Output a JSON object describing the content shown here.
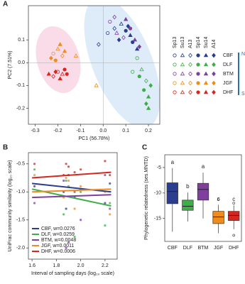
{
  "chart_data": [
    {
      "type": "scatter",
      "panel_label": "A",
      "xlabel": "PC1 (56.78%)",
      "ylabel": "PC2 (7.51%)",
      "xlim": [
        -0.33,
        0.25
      ],
      "ylim": [
        -0.27,
        0.25
      ],
      "xticks": [
        -0.3,
        -0.2,
        -0.1,
        {
          "value": 0,
          "label": "0.0"
        },
        0.1,
        0.2
      ],
      "yticks": [
        -0.2,
        -0.1,
        {
          "value": 0,
          "label": "0.0"
        },
        0.1
      ],
      "seasons": [
        "Sp13",
        "Su13",
        "A13",
        "Sp14",
        "Su14",
        "A14"
      ],
      "north_label": "N",
      "south_label": "S",
      "series": [
        {
          "name": "CBF",
          "color": "#2b3d8f",
          "x": [
            0.02,
            0.05,
            0.08,
            0.1,
            0.12,
            0.07,
            0.13,
            -0.02,
            0.15,
            0.11
          ],
          "values": [
            0.13,
            0.15,
            0.17,
            0.14,
            0.12,
            0.1,
            0.09,
            0.08,
            0.06,
            0.16
          ],
          "season": [
            "Sp13",
            "A13",
            "Su13",
            "Sp14",
            "Su14",
            "A14",
            "Sp14",
            "A13",
            "Su14",
            "A14"
          ]
        },
        {
          "name": "DLF",
          "color": "#3fae49",
          "x": [
            0.15,
            0.17,
            0.19,
            0.18,
            0.2,
            0.19,
            0.21,
            0.16,
            0.2,
            0.13
          ],
          "values": [
            0.02,
            -0.03,
            -0.08,
            -0.12,
            -0.15,
            -0.18,
            -0.1,
            -0.06,
            -0.2,
            -0.04
          ],
          "season": [
            "Sp13",
            "Su13",
            "A13",
            "Sp14",
            "Su14",
            "A14",
            "A14",
            "Sp14",
            "Su14",
            "Sp13"
          ]
        },
        {
          "name": "BTM",
          "color": "#7e3f9d",
          "x": [
            0.03,
            0.06,
            0.09,
            0.12,
            0.14,
            0.16,
            0.05,
            0.1
          ],
          "values": [
            0.18,
            0.13,
            0.11,
            0.15,
            0.1,
            0.07,
            0.2,
            0.19
          ],
          "season": [
            "Sp13",
            "Su13",
            "A13",
            "Sp14",
            "Su14",
            "A14",
            "A13",
            "Su14"
          ]
        },
        {
          "name": "JGF",
          "color": "#f08c1e",
          "x": [
            -0.22,
            -0.2,
            -0.18,
            -0.21,
            -0.17,
            -0.23,
            -0.19,
            -0.12,
            -0.03
          ],
          "values": [
            0.04,
            0.06,
            0.03,
            0.01,
            0.05,
            0.02,
            0.08,
            0.03,
            -0.1
          ],
          "season": [
            "Sp13",
            "Su13",
            "A13",
            "Sp14",
            "Su14",
            "A14",
            "Su14",
            "Su13",
            "Su13"
          ]
        },
        {
          "name": "DHF",
          "color": "#d7261e",
          "x": [
            -0.2,
            -0.18,
            -0.22,
            -0.17,
            -0.19,
            -0.21,
            -0.16,
            -0.24
          ],
          "values": [
            -0.04,
            -0.05,
            -0.06,
            -0.03,
            -0.07,
            -0.04,
            -0.05,
            -0.05
          ],
          "season": [
            "Sp13",
            "Su13",
            "A13",
            "Sp14",
            "Su14",
            "A14",
            "Sp14",
            "Su14"
          ]
        }
      ]
    },
    {
      "type": "scatter-fit",
      "panel_label": "B",
      "xlabel": "Interval of sampling days (log₁₀ scale)",
      "ylabel": "UniFrac community similarity (log₁₀ scale)",
      "xlim": [
        1.57,
        2.3
      ],
      "ylim": [
        -2.2,
        -0.3
      ],
      "xticks": [
        1.6,
        1.8,
        {
          "value": 2,
          "label": "2.0"
        },
        2.2
      ],
      "yticks": [
        -0.5,
        {
          "value": -1,
          "label": "-1.0"
        },
        -1.5,
        {
          "value": -2,
          "label": "-2.0"
        }
      ],
      "fit_x": [
        1.6,
        2.25
      ],
      "series": [
        {
          "name": "CBF, w=0.0276",
          "color": "#2b3d8f",
          "x": [
            1.62,
            1.86,
            1.9,
            1.95,
            2.0,
            2.2,
            2.24,
            1.88
          ],
          "values": [
            -0.9,
            -1.0,
            -0.7,
            -1.1,
            -0.95,
            -1.2,
            -0.85,
            -1.3
          ],
          "fit": [
            -0.85,
            -1.0
          ]
        },
        {
          "name": "DLF, w=0.0259",
          "color": "#3fae49",
          "x": [
            1.62,
            1.86,
            1.9,
            1.95,
            2.0,
            2.2,
            2.24,
            1.88
          ],
          "values": [
            -0.6,
            -1.4,
            -0.9,
            -1.8,
            -1.0,
            -1.6,
            -1.2,
            -0.8
          ],
          "fit": [
            -0.95,
            -1.25
          ]
        },
        {
          "name": "BTM, w=0.0048",
          "color": "#7e3f9d",
          "x": [
            1.62,
            1.86,
            1.9,
            1.95,
            2.0,
            2.2,
            2.24,
            1.88
          ],
          "values": [
            -1.2,
            -0.8,
            -1.9,
            -1.0,
            -1.5,
            -0.7,
            -1.3,
            -2.0
          ],
          "fit": [
            -1.1,
            -1.05
          ]
        },
        {
          "name": "JGF, w=0.0011",
          "color": "#f08c1e",
          "x": [
            1.62,
            1.86,
            1.9,
            1.95,
            2.0,
            2.2,
            2.24,
            1.88
          ],
          "values": [
            -0.7,
            -1.1,
            -0.8,
            -1.3,
            -0.9,
            -1.0,
            -1.4,
            -0.75
          ],
          "fit": [
            -1.0,
            -0.95
          ]
        },
        {
          "name": "DHF, w=0.0006",
          "color": "#d7261e",
          "x": [
            1.62,
            1.86,
            1.9,
            1.95,
            2.0,
            2.2,
            2.24,
            1.88
          ],
          "values": [
            -0.5,
            -0.7,
            -0.55,
            -0.65,
            -0.6,
            -0.45,
            -0.7,
            -0.5
          ],
          "fit": [
            -0.75,
            -0.65
          ]
        }
      ]
    },
    {
      "type": "box",
      "panel_label": "C",
      "ylabel": "Phylogenetic relatedness (ses.MNTD)",
      "ylim": [
        -19.5,
        -2.5
      ],
      "yticks": [
        -5,
        -10,
        -15
      ],
      "categories": [
        "CBF",
        "DLF",
        "BTM",
        "JGF",
        "DHF"
      ],
      "colors": [
        "#2b3d8f",
        "#3fae49",
        "#7e3f9d",
        "#f08c1e",
        "#d7261e"
      ],
      "letters": [
        "a",
        "b",
        "a",
        "c",
        "c"
      ],
      "boxes": [
        {
          "low": -17.6,
          "q1": -12.1,
          "median": -9.7,
          "q3": -8.0,
          "high": -5.1,
          "outliers": []
        },
        {
          "low": -15.6,
          "q1": -13.4,
          "median": -12.6,
          "q3": -11.4,
          "high": -9.9,
          "outliers": []
        },
        {
          "low": -15.0,
          "q1": -11.4,
          "median": -9.3,
          "q3": -8.1,
          "high": -6.0,
          "outliers": []
        },
        {
          "low": -17.9,
          "q1": -16.0,
          "median": -14.7,
          "q3": -13.6,
          "high": -12.3,
          "outliers": [
            -11.3
          ]
        },
        {
          "low": -17.1,
          "q1": -15.4,
          "median": -14.4,
          "q3": -13.6,
          "high": -12.4,
          "outliers": [
            -12.0,
            -18.3
          ]
        }
      ]
    }
  ]
}
